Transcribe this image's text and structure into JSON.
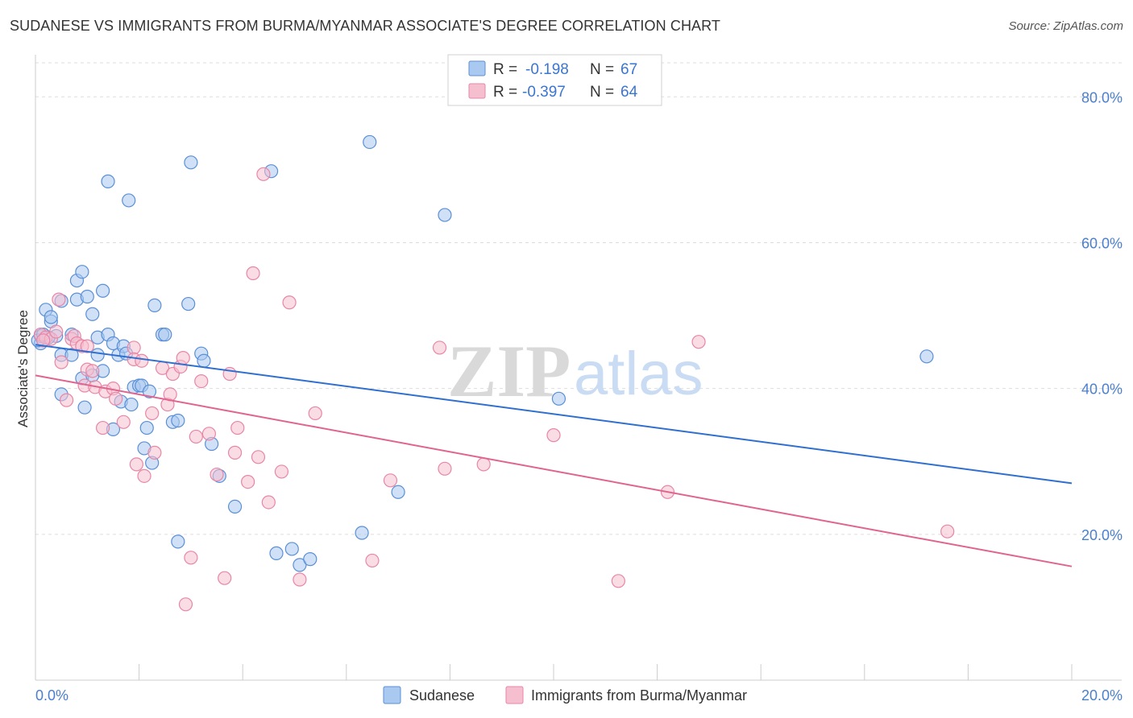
{
  "title": "SUDANESE VS IMMIGRANTS FROM BURMA/MYANMAR ASSOCIATE'S DEGREE CORRELATION CHART",
  "source": "Source: ZipAtlas.com",
  "watermark": {
    "zip": "ZIP",
    "atlas": "atlas"
  },
  "colors": {
    "blue_fill": "#a9c9f0",
    "blue_stroke": "#5a8fd6",
    "blue_line": "#2f6fd0",
    "pink_fill": "#f6bfd0",
    "pink_stroke": "#e886a6",
    "pink_line": "#e0648e",
    "tick_color": "#4a7fd0",
    "grid": "#dddddd"
  },
  "legend_top": [
    {
      "r_label": "R = ",
      "r_value": "-0.198",
      "n_label": "N = ",
      "n_value": "67",
      "series": "Sudanese"
    },
    {
      "r_label": "R = ",
      "r_value": "-0.397",
      "n_label": "N = ",
      "n_value": "64",
      "series": "Immigrants from Burma/Myanmar"
    }
  ],
  "chart_data": {
    "type": "scatter",
    "title": "SUDANESE VS IMMIGRANTS FROM BURMA/MYANMAR ASSOCIATE'S DEGREE CORRELATION CHART",
    "xlabel": "",
    "ylabel": "Associate's Degree",
    "xlim": [
      0,
      20
    ],
    "ylim": [
      0,
      85
    ],
    "x_tick_labels": [
      "0.0%",
      "20.0%"
    ],
    "y_ticks": [
      20,
      40,
      60,
      80
    ],
    "y_tick_labels": [
      "20.0%",
      "40.0%",
      "60.0%",
      "80.0%"
    ],
    "grid": true,
    "legend_position": "bottom",
    "series": [
      {
        "name": "Sudanese",
        "color": "#a9c9f0",
        "trend": {
          "x": [
            0,
            20
          ],
          "y": [
            46.0,
            27.0
          ]
        },
        "points": [
          [
            0.1,
            46.2
          ],
          [
            0.1,
            47.2
          ],
          [
            0.2,
            50.8
          ],
          [
            0.3,
            49.2
          ],
          [
            0.3,
            49.8
          ],
          [
            0.4,
            47.2
          ],
          [
            0.5,
            52.0
          ],
          [
            0.5,
            44.6
          ],
          [
            0.5,
            39.2
          ],
          [
            0.7,
            47.4
          ],
          [
            0.7,
            44.6
          ],
          [
            0.8,
            54.8
          ],
          [
            0.8,
            52.2
          ],
          [
            0.9,
            56.0
          ],
          [
            0.9,
            41.4
          ],
          [
            0.95,
            37.4
          ],
          [
            1.0,
            52.6
          ],
          [
            1.1,
            50.2
          ],
          [
            1.1,
            41.8
          ],
          [
            1.2,
            47.0
          ],
          [
            1.2,
            44.6
          ],
          [
            1.3,
            53.4
          ],
          [
            1.3,
            42.4
          ],
          [
            1.4,
            47.4
          ],
          [
            1.4,
            68.4
          ],
          [
            1.5,
            46.2
          ],
          [
            1.5,
            34.4
          ],
          [
            1.6,
            44.6
          ],
          [
            1.65,
            38.2
          ],
          [
            1.7,
            45.8
          ],
          [
            1.8,
            65.8
          ],
          [
            1.85,
            37.8
          ],
          [
            1.9,
            40.2
          ],
          [
            2.0,
            40.4
          ],
          [
            2.05,
            40.4
          ],
          [
            2.1,
            31.8
          ],
          [
            2.15,
            34.6
          ],
          [
            2.2,
            39.6
          ],
          [
            2.25,
            29.8
          ],
          [
            2.3,
            51.4
          ],
          [
            2.45,
            47.4
          ],
          [
            2.5,
            47.4
          ],
          [
            2.65,
            35.4
          ],
          [
            2.75,
            35.6
          ],
          [
            2.75,
            19.0
          ],
          [
            2.95,
            51.6
          ],
          [
            3.0,
            71.0
          ],
          [
            3.2,
            44.8
          ],
          [
            3.25,
            43.8
          ],
          [
            3.4,
            32.4
          ],
          [
            3.55,
            28.0
          ],
          [
            3.85,
            23.8
          ],
          [
            4.55,
            69.8
          ],
          [
            4.65,
            17.4
          ],
          [
            4.95,
            18.0
          ],
          [
            5.1,
            15.8
          ],
          [
            5.3,
            16.6
          ],
          [
            6.3,
            20.2
          ],
          [
            6.45,
            73.8
          ],
          [
            7.0,
            25.8
          ],
          [
            7.9,
            63.8
          ],
          [
            10.1,
            38.6
          ],
          [
            17.2,
            44.4
          ],
          [
            0.05,
            46.6
          ],
          [
            0.25,
            47.0
          ],
          [
            1.75,
            44.8
          ],
          [
            0.15,
            47.4
          ]
        ]
      },
      {
        "name": "Immigrants from Burma/Myanmar",
        "color": "#f6bfd0",
        "trend": {
          "x": [
            0,
            20
          ],
          "y": [
            41.8,
            15.6
          ]
        },
        "points": [
          [
            0.1,
            47.4
          ],
          [
            0.2,
            47.0
          ],
          [
            0.3,
            46.8
          ],
          [
            0.4,
            47.8
          ],
          [
            0.45,
            52.2
          ],
          [
            0.5,
            43.6
          ],
          [
            0.6,
            38.4
          ],
          [
            0.7,
            46.8
          ],
          [
            0.75,
            47.2
          ],
          [
            0.8,
            46.2
          ],
          [
            0.9,
            45.8
          ],
          [
            0.95,
            40.4
          ],
          [
            1.0,
            45.8
          ],
          [
            1.0,
            42.6
          ],
          [
            1.1,
            42.4
          ],
          [
            1.15,
            40.2
          ],
          [
            1.3,
            34.6
          ],
          [
            1.35,
            39.6
          ],
          [
            1.5,
            40.0
          ],
          [
            1.55,
            38.6
          ],
          [
            1.7,
            35.4
          ],
          [
            1.9,
            45.6
          ],
          [
            1.9,
            44.0
          ],
          [
            1.95,
            29.6
          ],
          [
            2.05,
            43.8
          ],
          [
            2.1,
            28.0
          ],
          [
            2.25,
            36.6
          ],
          [
            2.3,
            31.2
          ],
          [
            2.45,
            42.8
          ],
          [
            2.55,
            37.8
          ],
          [
            2.6,
            39.2
          ],
          [
            2.65,
            42.0
          ],
          [
            2.8,
            43.0
          ],
          [
            2.85,
            44.2
          ],
          [
            2.9,
            10.4
          ],
          [
            3.0,
            16.8
          ],
          [
            3.1,
            33.4
          ],
          [
            3.2,
            41.0
          ],
          [
            3.35,
            33.8
          ],
          [
            3.5,
            28.2
          ],
          [
            3.65,
            14.0
          ],
          [
            3.75,
            42.0
          ],
          [
            3.85,
            31.2
          ],
          [
            3.9,
            34.6
          ],
          [
            4.1,
            27.2
          ],
          [
            4.2,
            55.8
          ],
          [
            4.3,
            30.6
          ],
          [
            4.4,
            69.4
          ],
          [
            4.5,
            24.4
          ],
          [
            4.75,
            28.6
          ],
          [
            4.9,
            51.8
          ],
          [
            5.1,
            13.8
          ],
          [
            5.4,
            36.6
          ],
          [
            6.5,
            16.4
          ],
          [
            6.85,
            27.4
          ],
          [
            7.8,
            45.6
          ],
          [
            7.9,
            29.0
          ],
          [
            8.65,
            29.6
          ],
          [
            10.0,
            33.6
          ],
          [
            11.25,
            13.6
          ],
          [
            12.2,
            25.8
          ],
          [
            12.8,
            46.4
          ],
          [
            17.6,
            20.4
          ],
          [
            0.15,
            46.6
          ]
        ]
      }
    ]
  }
}
